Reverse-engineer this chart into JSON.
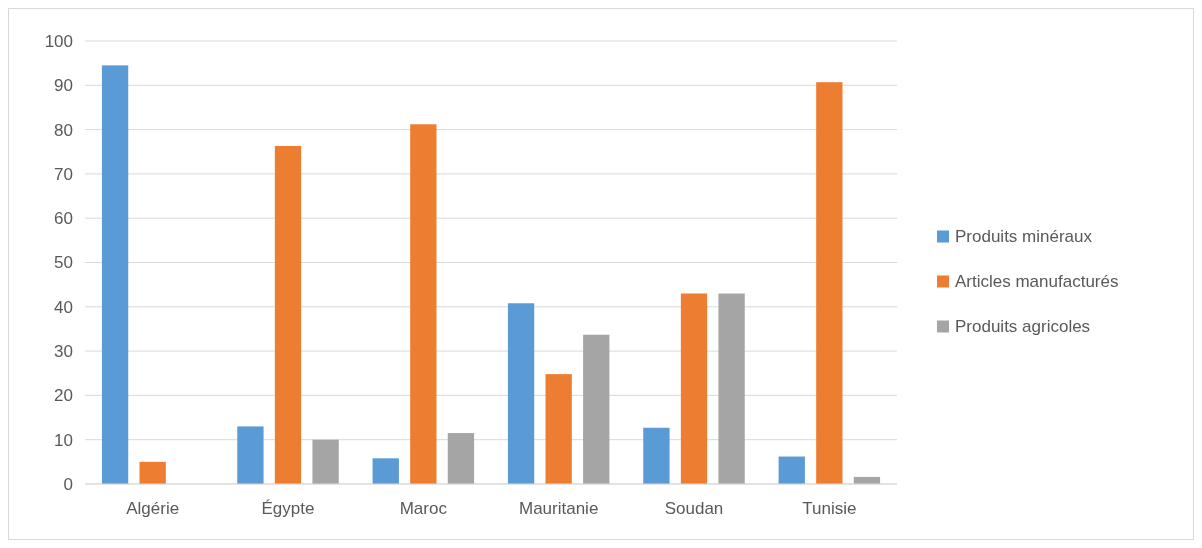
{
  "chart_data": {
    "type": "bar",
    "categories": [
      "Algérie",
      "Égypte",
      "Maroc",
      "Mauritanie",
      "Soudan",
      "Tunisie"
    ],
    "series": [
      {
        "name": "Produits minéraux",
        "color": "#5b9bd5",
        "values": [
          94.5,
          13,
          5.8,
          40.8,
          12.7,
          6.2
        ]
      },
      {
        "name": "Articles manufacturés",
        "color": "#ed7d31",
        "values": [
          5,
          76.3,
          81.2,
          24.8,
          43,
          90.7
        ]
      },
      {
        "name": "Produits agricoles",
        "color": "#a5a5a5",
        "values": [
          0,
          10,
          11.5,
          33.7,
          43,
          1.6
        ]
      }
    ],
    "ylim": [
      0,
      100
    ],
    "yticks": [
      0,
      10,
      20,
      30,
      40,
      50,
      60,
      70,
      80,
      90,
      100
    ],
    "grid": "y",
    "legend": "right"
  }
}
